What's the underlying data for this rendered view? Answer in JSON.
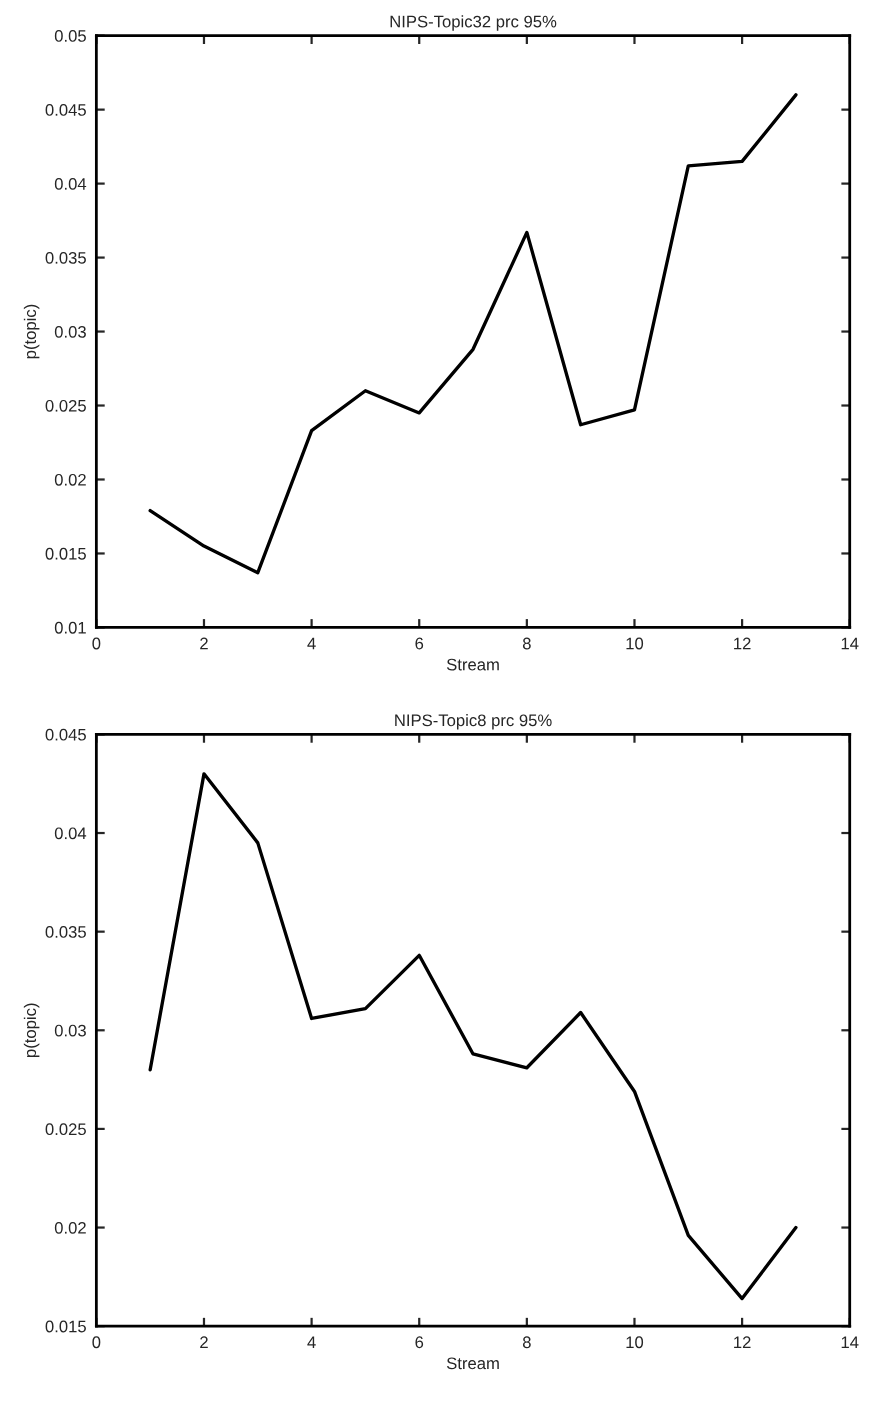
{
  "chart_data": [
    {
      "type": "line",
      "title": "NIPS-Topic32 prc 95%",
      "xlabel": "Stream",
      "ylabel": "p(topic)",
      "x": [
        1,
        2,
        3,
        4,
        5,
        6,
        7,
        8,
        9,
        10,
        11,
        12,
        13
      ],
      "xlim": [
        0,
        14
      ],
      "xticks": [
        0,
        2,
        4,
        6,
        8,
        10,
        12,
        14
      ],
      "ylim": [
        0.01,
        0.05
      ],
      "yticks": [
        0.01,
        0.015,
        0.02,
        0.025,
        0.03,
        0.035,
        0.04,
        0.045,
        0.05
      ],
      "grid": false,
      "series": [
        {
          "color": "#000000",
          "values": [
            0.0179,
            0.0155,
            0.0137,
            0.0233,
            0.026,
            0.0245,
            0.0288,
            0.0367,
            0.0237,
            0.0247,
            0.0412,
            0.0415,
            0.046
          ]
        }
      ]
    },
    {
      "type": "line",
      "title": "NIPS-Topic8 prc 95%",
      "xlabel": "Stream",
      "ylabel": "p(topic)",
      "x": [
        1,
        2,
        3,
        4,
        5,
        6,
        7,
        8,
        9,
        10,
        11,
        12,
        13
      ],
      "xlim": [
        0,
        14
      ],
      "xticks": [
        0,
        2,
        4,
        6,
        8,
        10,
        12,
        14
      ],
      "ylim": [
        0.015,
        0.045
      ],
      "yticks": [
        0.015,
        0.02,
        0.025,
        0.03,
        0.035,
        0.04,
        0.045
      ],
      "grid": false,
      "series": [
        {
          "color": "#000000",
          "values": [
            0.028,
            0.043,
            0.0395,
            0.0306,
            0.0311,
            0.0338,
            0.0288,
            0.0281,
            0.0309,
            0.0269,
            0.0196,
            0.0164,
            0.02
          ]
        }
      ]
    }
  ]
}
